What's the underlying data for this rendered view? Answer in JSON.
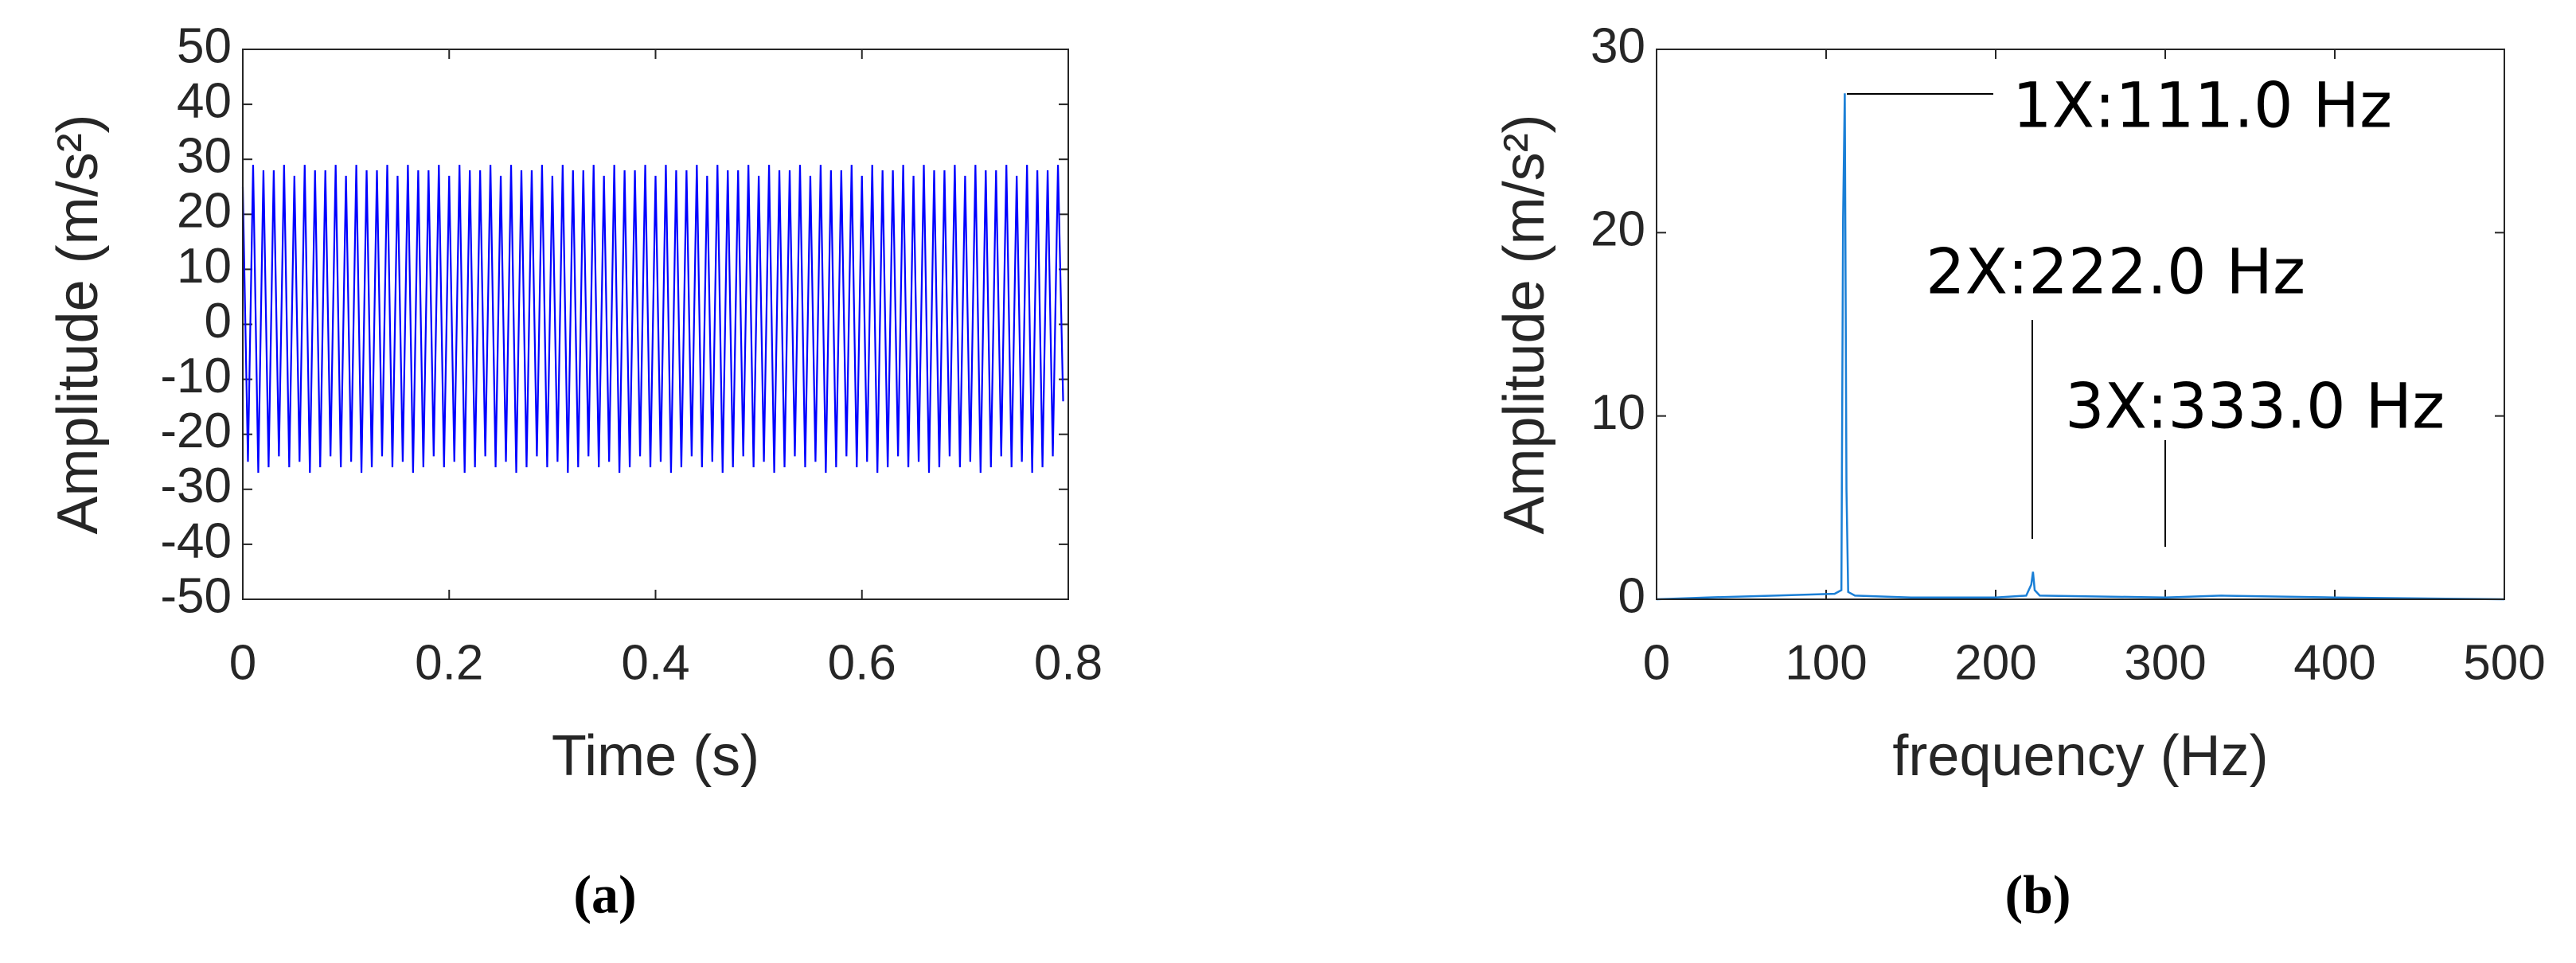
{
  "chart_data": [
    {
      "type": "line",
      "xlabel": "Time (s)",
      "ylabel": "Amplitude (m/s²)",
      "panel": "(a)",
      "color": "#0000ff",
      "xlim": [
        0,
        0.8
      ],
      "xticks": [
        0,
        0.2,
        0.4,
        0.6,
        0.8
      ],
      "ylim": [
        -50,
        50
      ],
      "yticks": [
        -50,
        -40,
        -30,
        -20,
        -10,
        0,
        10,
        20,
        30,
        40,
        50
      ],
      "x": [
        0,
        0.005,
        0.01,
        0.015,
        0.02,
        0.025,
        0.03,
        0.035,
        0.04,
        0.045,
        0.05,
        0.055,
        0.06,
        0.065,
        0.07,
        0.075,
        0.08,
        0.085,
        0.09,
        0.095,
        0.1,
        0.105,
        0.11,
        0.115,
        0.12,
        0.125,
        0.13,
        0.135,
        0.14,
        0.145,
        0.15,
        0.155,
        0.16,
        0.165,
        0.17,
        0.175,
        0.18,
        0.185,
        0.19,
        0.195,
        0.2,
        0.205,
        0.21,
        0.215,
        0.22,
        0.225,
        0.23,
        0.235,
        0.24,
        0.245,
        0.25,
        0.255,
        0.26,
        0.265,
        0.27,
        0.275,
        0.28,
        0.285,
        0.29,
        0.295,
        0.3,
        0.305,
        0.31,
        0.315,
        0.32,
        0.325,
        0.33,
        0.335,
        0.34,
        0.345,
        0.35,
        0.355,
        0.36,
        0.365,
        0.37,
        0.375,
        0.38,
        0.385,
        0.39,
        0.395,
        0.4,
        0.405,
        0.41,
        0.415,
        0.42,
        0.425,
        0.43,
        0.435,
        0.44,
        0.445,
        0.45,
        0.455,
        0.46,
        0.465,
        0.47,
        0.475,
        0.48,
        0.485,
        0.49,
        0.495,
        0.5,
        0.505,
        0.51,
        0.515,
        0.52,
        0.525,
        0.53,
        0.535,
        0.54,
        0.545,
        0.55,
        0.555,
        0.56,
        0.565,
        0.57,
        0.575,
        0.58,
        0.585,
        0.59,
        0.595,
        0.6,
        0.605,
        0.61,
        0.615,
        0.62,
        0.625,
        0.63,
        0.635,
        0.64,
        0.645,
        0.65,
        0.655,
        0.66,
        0.665,
        0.67,
        0.675,
        0.68,
        0.685,
        0.69,
        0.695,
        0.7,
        0.705,
        0.71,
        0.715,
        0.72,
        0.725,
        0.73,
        0.735,
        0.74,
        0.745,
        0.75,
        0.755,
        0.76,
        0.765,
        0.77,
        0.775,
        0.78,
        0.785,
        0.79,
        0.795
      ],
      "values": [
        25,
        -25,
        29,
        -27,
        28,
        -26,
        28,
        -24,
        29,
        -26,
        27,
        -25,
        29,
        -27,
        28,
        -26,
        28,
        -24,
        29,
        -26,
        27,
        -25,
        29,
        -27,
        28,
        -26,
        28,
        -24,
        29,
        -26,
        27,
        -25,
        29,
        -27,
        28,
        -26,
        28,
        -24,
        29,
        -26,
        27,
        -25,
        29,
        -27,
        28,
        -26,
        28,
        -24,
        29,
        -26,
        27,
        -25,
        29,
        -27,
        28,
        -26,
        28,
        -24,
        29,
        -26,
        27,
        -25,
        29,
        -27,
        28,
        -26,
        28,
        -24,
        29,
        -26,
        27,
        -25,
        29,
        -27,
        28,
        -26,
        28,
        -24,
        29,
        -26,
        27,
        -25,
        29,
        -27,
        28,
        -26,
        28,
        -24,
        29,
        -26,
        27,
        -25,
        29,
        -27,
        28,
        -26,
        28,
        -24,
        29,
        -26,
        27,
        -25,
        29,
        -27,
        28,
        -26,
        28,
        -24,
        29,
        -26,
        27,
        -25,
        29,
        -27,
        28,
        -26,
        28,
        -24,
        29,
        -26,
        27,
        -25,
        29,
        -27,
        28,
        -26,
        28,
        -24,
        29,
        -26,
        27,
        -25,
        29,
        -27,
        28,
        -26,
        28,
        -24,
        29,
        -26,
        27,
        -25,
        29,
        -27,
        28,
        -26,
        28,
        -24,
        29,
        -26,
        27,
        -25,
        29,
        -27,
        28,
        -26,
        28,
        -24,
        29,
        -14
      ]
    },
    {
      "type": "line",
      "xlabel": "frequency (Hz)",
      "ylabel": "Amplitude (m/s²)",
      "panel": "(b)",
      "color": "#1a7fd6",
      "xlim": [
        0,
        500
      ],
      "xticks": [
        0,
        100,
        200,
        300,
        400,
        500
      ],
      "ylim": [
        0,
        30
      ],
      "yticks": [
        0,
        10,
        20,
        30
      ],
      "x": [
        0,
        30,
        70,
        105,
        109,
        110,
        111,
        112,
        113,
        117,
        150,
        200,
        218,
        221,
        222,
        223,
        226,
        300,
        333,
        400,
        500
      ],
      "values": [
        0,
        0.1,
        0.2,
        0.3,
        0.5,
        20.8,
        27.6,
        6,
        0.4,
        0.2,
        0.1,
        0.1,
        0.2,
        0.8,
        1.5,
        0.5,
        0.2,
        0.1,
        0.2,
        0.1,
        0
      ],
      "annotations": [
        "1X:111.0 Hz",
        "2X:222.0 Hz",
        "3X:333.0 Hz"
      ]
    }
  ]
}
